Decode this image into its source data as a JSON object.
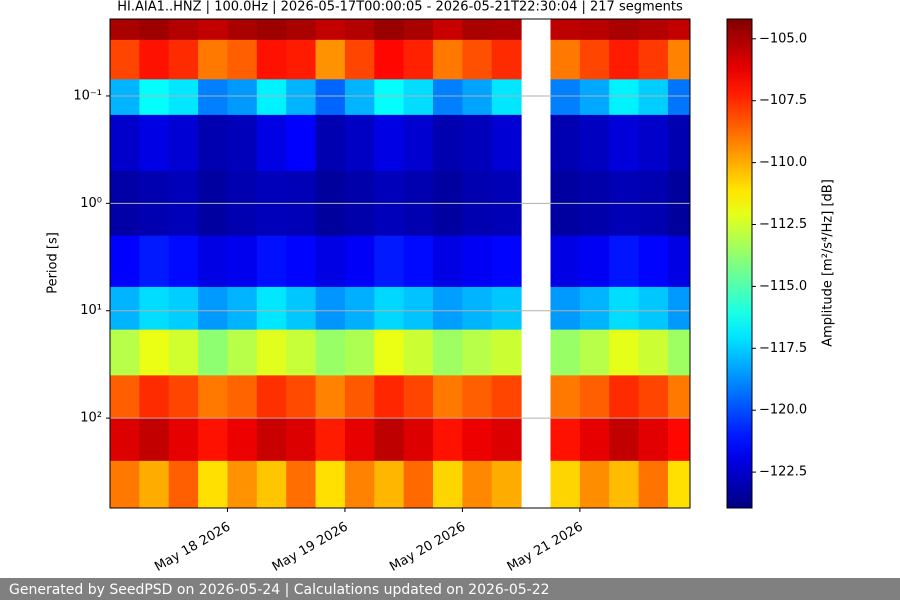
{
  "chart_data": {
    "type": "heatmap",
    "title": "HI.AIA1..HNZ | 100.0Hz | 2026-05-17T00:00:05 - 2026-05-21T22:30:04 | 217 segments",
    "y_label": "Period [s]",
    "colorbar_label": "Amplitude [m²/s⁴/Hz] [dB]",
    "xlim": [
      "2026-05-17T00:00:05",
      "2026-05-21T22:30:04"
    ],
    "xticks": [
      {
        "value": "2026-05-18T00:00:00",
        "label": "May 18 2026"
      },
      {
        "value": "2026-05-19T00:00:00",
        "label": "May 19 2026"
      },
      {
        "value": "2026-05-20T00:00:00",
        "label": "May 20 2026"
      },
      {
        "value": "2026-05-21T00:00:00",
        "label": "May 21 2026"
      }
    ],
    "ylim": [
      0.0192,
      687
    ],
    "y_inverted": true,
    "y_log": true,
    "yticks": [
      {
        "value": 0.1,
        "label": "10⁻¹"
      },
      {
        "value": 1,
        "label": "10⁰"
      },
      {
        "value": 10,
        "label": "10¹"
      },
      {
        "value": 100,
        "label": "10²"
      }
    ],
    "grid": true,
    "colormap": "jet",
    "clim": [
      -123.95,
      -104.2
    ],
    "cticks": [
      {
        "value": -105,
        "label": "−105.0"
      },
      {
        "value": -107.5,
        "label": "−107.5"
      },
      {
        "value": -110,
        "label": "−110.0"
      },
      {
        "value": -112.5,
        "label": "−112.5"
      },
      {
        "value": -115,
        "label": "−115.0"
      },
      {
        "value": -117.5,
        "label": "−117.5"
      },
      {
        "value": -120,
        "label": "−120.0"
      },
      {
        "value": -122.5,
        "label": "−122.5"
      }
    ],
    "x_edges": [
      "2026-05-17T00:00:05",
      "2026-05-17T06:00:00",
      "2026-05-17T12:00:00",
      "2026-05-17T18:00:00",
      "2026-05-18T00:00:00",
      "2026-05-18T06:00:00",
      "2026-05-18T12:00:00",
      "2026-05-18T18:00:00",
      "2026-05-19T00:00:00",
      "2026-05-19T06:00:00",
      "2026-05-19T12:00:00",
      "2026-05-19T18:00:00",
      "2026-05-20T00:00:00",
      "2026-05-20T06:00:00",
      "2026-05-20T12:00:00",
      "2026-05-20T18:00:00",
      "2026-05-21T00:00:00",
      "2026-05-21T06:00:00",
      "2026-05-21T12:00:00",
      "2026-05-21T18:00:00",
      "2026-05-21T22:30:04"
    ],
    "y_edges": [
      0.0192,
      0.03,
      0.07,
      0.15,
      0.5,
      2,
      6,
      15,
      40,
      100,
      250,
      687
    ],
    "z": [
      [
        -105,
        -104.8,
        -105.2,
        -105.5,
        -105,
        -104.8,
        -105,
        -105.5,
        -105.2,
        -104.7,
        -105,
        -105.6,
        -105,
        -105.1,
        null,
        -105.4,
        -105.3,
        -105,
        -105.2,
        -105.5
      ],
      [
        -108,
        -107,
        -107.5,
        -109,
        -108.5,
        -107,
        -107.2,
        -109.5,
        -108,
        -106.8,
        -107.3,
        -109,
        -108.2,
        -107.5,
        null,
        -109,
        -108,
        -107.2,
        -107.8,
        -109.2
      ],
      [
        -118,
        -116.5,
        -117,
        -119,
        -118.5,
        -116.8,
        -118,
        -119.5,
        -118,
        -116.5,
        -117.2,
        -119,
        -118.3,
        -117,
        null,
        -119,
        -118.2,
        -116.8,
        -117.5,
        -119.2
      ],
      [
        -122.5,
        -122,
        -122.3,
        -123,
        -122.8,
        -122,
        -121.5,
        -123,
        -122.6,
        -122,
        -122.4,
        -123,
        -122.8,
        -122.3,
        null,
        -123,
        -122.7,
        -122.2,
        -122.5,
        -123
      ],
      [
        -123.2,
        -123,
        -122.8,
        -123.3,
        -123,
        -122.8,
        -122.9,
        -123.4,
        -123.1,
        -122.8,
        -123,
        -123.3,
        -123,
        -122.9,
        null,
        -123.3,
        -123.1,
        -122.9,
        -123,
        -123.4
      ],
      [
        -121.5,
        -121,
        -121.3,
        -122,
        -121.8,
        -121.2,
        -121.4,
        -122,
        -121.6,
        -121,
        -121.3,
        -122,
        -121.7,
        -121.4,
        null,
        -122,
        -121.7,
        -121.1,
        -121.4,
        -122
      ],
      [
        -118,
        -117.2,
        -117.5,
        -118.5,
        -118,
        -117,
        -117.6,
        -118.6,
        -118.1,
        -117.3,
        -117.7,
        -118.4,
        -118,
        -117.6,
        null,
        -118.5,
        -118,
        -117.2,
        -117.6,
        -118.5
      ],
      [
        -113,
        -112,
        -112.5,
        -113.8,
        -113,
        -112.2,
        -112.7,
        -113.6,
        -113.2,
        -112,
        -112.6,
        -113.5,
        -113,
        -112.6,
        null,
        -113.6,
        -113,
        -112.1,
        -112.6,
        -113.5
      ],
      [
        -108.5,
        -107.5,
        -108,
        -109,
        -108.6,
        -107.6,
        -108.1,
        -109.2,
        -108.4,
        -107.4,
        -108,
        -109,
        -108.5,
        -108,
        null,
        -109,
        -108.5,
        -107.5,
        -108,
        -109
      ],
      [
        -106,
        -105.5,
        -106.2,
        -107,
        -106.3,
        -105.6,
        -106,
        -107.2,
        -106.2,
        -105.4,
        -106,
        -107,
        -106.3,
        -106,
        null,
        -107,
        -106.2,
        -105.5,
        -106.1,
        -106.8
      ],
      [
        -109,
        -110,
        -108.5,
        -111,
        -109.5,
        -110.5,
        -108.8,
        -111,
        -109.2,
        -110.2,
        -108.7,
        -110.8,
        -109.3,
        -110,
        null,
        -110.8,
        -109.4,
        -110.3,
        -108.9,
        -111
      ]
    ],
    "footer": "Generated by SeedPSD on 2026-05-24 | Calculations updated on 2026-05-22"
  }
}
